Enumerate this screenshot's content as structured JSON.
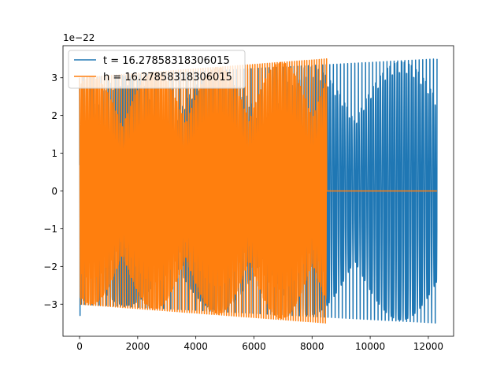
{
  "chart_data": {
    "type": "line",
    "title": "",
    "xlabel": "",
    "ylabel": "",
    "offset_label": "1e−22",
    "xlim": [
      -570,
      12870
    ],
    "ylim": [
      -3.85,
      3.85
    ],
    "x_ticks": [
      0,
      2000,
      4000,
      6000,
      8000,
      10000,
      12000
    ],
    "x_tick_labels": [
      "0",
      "2000",
      "4000",
      "6000",
      "8000",
      "10000",
      "12000"
    ],
    "y_ticks": [
      -3,
      -2,
      -1,
      0,
      1,
      2,
      3
    ],
    "y_tick_labels": [
      "−3",
      "−2",
      "−1",
      "0",
      "1",
      "2",
      "3"
    ],
    "grid": false,
    "legend_position": "upper-left",
    "series": [
      {
        "name": "t = 16.27858318306015",
        "color": "#1f77b4",
        "x_range": [
          0,
          12300
        ],
        "amplitude_start": 3.0,
        "amplitude_end": 3.5,
        "initial_spike": -3.3
      },
      {
        "name": "h = 16.27858318306015",
        "color": "#ff7f0e",
        "x_range": [
          0,
          8500
        ],
        "amplitude_start": 3.0,
        "amplitude_end": 3.5,
        "zero_after": 8500,
        "zero_until": 12300
      }
    ]
  }
}
